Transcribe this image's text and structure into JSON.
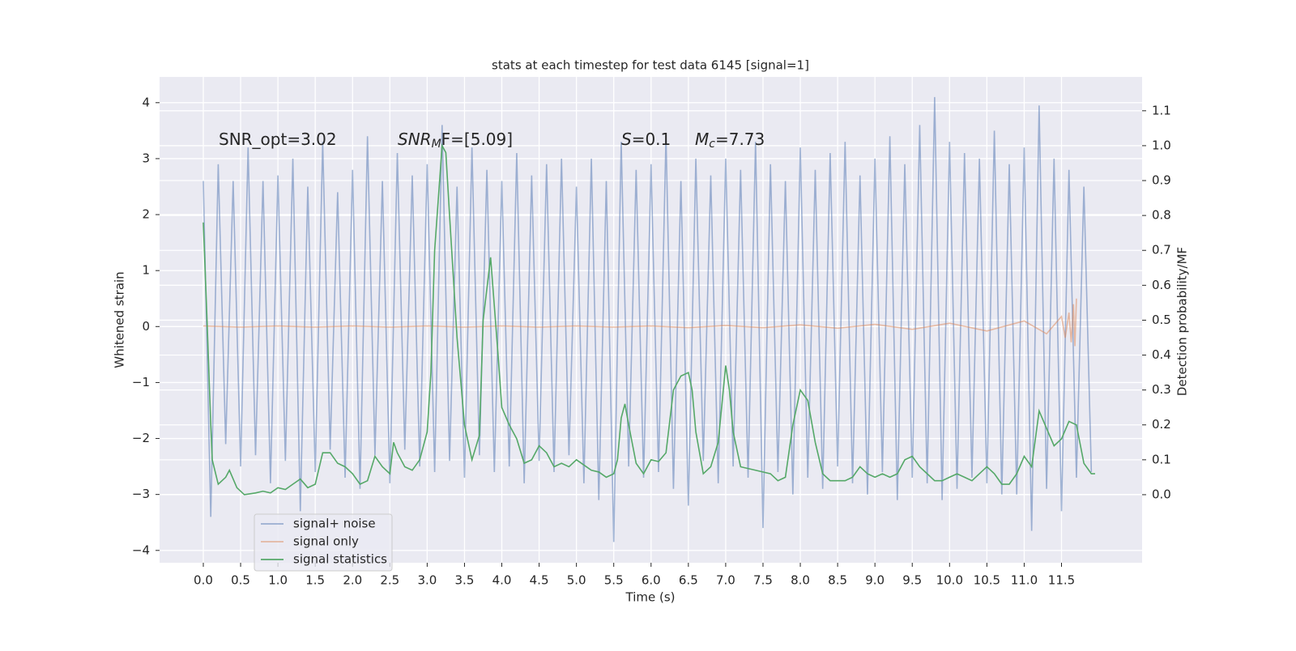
{
  "chart_data": {
    "type": "line",
    "title": "stats at each timestep for test data 6145 [signal=1]",
    "xlabel": "Time (s)",
    "ylabel": "Whitened strain",
    "y2label": "Detection probability/MF",
    "annotations": [
      [
        "SNR_opt=3.02"
      ],
      [
        "SNR",
        "M",
        "F=[5.09]"
      ],
      [
        "S",
        "=0.1"
      ],
      [
        "M",
        "c",
        "=7.73"
      ]
    ],
    "xlim": [
      -0.586,
      12.58
    ],
    "ylim": [
      -4.22,
      4.46
    ],
    "y2lim": [
      -0.195,
      1.197
    ],
    "xticks": [
      {
        "value": 0,
        "label": "0.0"
      },
      0.5,
      {
        "value": 1,
        "label": "1.0"
      },
      1.5,
      {
        "value": 2,
        "label": "2.0"
      },
      2.5,
      {
        "value": 3,
        "label": "3.0"
      },
      3.5,
      {
        "value": 4,
        "label": "4.0"
      },
      4.5,
      {
        "value": 5,
        "label": "5.0"
      },
      5.5,
      {
        "value": 6,
        "label": "6.0"
      },
      6.5,
      {
        "value": 7,
        "label": "7.0"
      },
      7.5,
      {
        "value": 8,
        "label": "8.0"
      },
      8.5,
      {
        "value": 9,
        "label": "9.0"
      },
      9.5,
      {
        "value": 10,
        "label": "10.0"
      },
      10.5,
      {
        "value": 11,
        "label": "11.0"
      },
      11.5
    ],
    "yticks": [
      {
        "value": -4,
        "label": "−4"
      },
      {
        "value": -3,
        "label": "−3"
      },
      {
        "value": -2,
        "label": "−2"
      },
      {
        "value": -1,
        "label": "−1"
      },
      0,
      1,
      2,
      3,
      4
    ],
    "y2ticks": [
      {
        "value": 0,
        "label": "0.0"
      },
      0.1,
      0.2,
      0.3,
      0.4,
      0.5,
      0.6,
      0.7,
      0.8,
      0.9,
      {
        "value": 1,
        "label": "1.0"
      },
      1.1
    ],
    "grid": true,
    "legend": "lower left",
    "series": [
      {
        "name": "signal+ noise",
        "color": "#4c72b0",
        "alpha": 0.5,
        "x": [
          0,
          0.1,
          0.2,
          0.3,
          0.4,
          0.5,
          0.6,
          0.7,
          0.8,
          0.9,
          1,
          1.1,
          1.2,
          1.3,
          1.4,
          1.5,
          1.6,
          1.7,
          1.8,
          1.9,
          2,
          2.1,
          2.2,
          2.3,
          2.4,
          2.5,
          2.6,
          2.7,
          2.8,
          2.9,
          3,
          3.1,
          3.2,
          3.3,
          3.4,
          3.5,
          3.6,
          3.7,
          3.8,
          3.9,
          4,
          4.1,
          4.2,
          4.3,
          4.4,
          4.5,
          4.6,
          4.7,
          4.8,
          4.9,
          5,
          5.1,
          5.2,
          5.3,
          5.4,
          5.5,
          5.6,
          5.7,
          5.8,
          5.9,
          6,
          6.1,
          6.2,
          6.3,
          6.4,
          6.5,
          6.6,
          6.7,
          6.8,
          6.9,
          7,
          7.1,
          7.2,
          7.3,
          7.4,
          7.5,
          7.6,
          7.7,
          7.8,
          7.9,
          8,
          8.1,
          8.2,
          8.3,
          8.4,
          8.5,
          8.6,
          8.7,
          8.8,
          8.9,
          9,
          9.1,
          9.2,
          9.3,
          9.4,
          9.5,
          9.6,
          9.7,
          9.8,
          9.9,
          10,
          10.1,
          10.2,
          10.3,
          10.4,
          10.5,
          10.6,
          10.7,
          10.8,
          10.9,
          11,
          11.1,
          11.2,
          11.3,
          11.4,
          11.5,
          11.6,
          11.7,
          11.8,
          11.9
        ],
        "values": [
          2.6,
          -3.4,
          2.9,
          -2.1,
          2.6,
          -2.5,
          3.2,
          -2.3,
          2.6,
          -2.8,
          2.7,
          -2.4,
          3.0,
          -3.3,
          2.5,
          -2.6,
          3.3,
          -2.2,
          2.4,
          -2.7,
          2.8,
          -2.9,
          3.4,
          -2.3,
          2.6,
          -2.8,
          3.1,
          -2.2,
          2.7,
          -2.5,
          2.9,
          -2.6,
          3.6,
          -2.4,
          2.5,
          -2.7,
          3.2,
          -2.3,
          2.8,
          -2.6,
          2.6,
          -2.5,
          3.1,
          -2.8,
          2.7,
          -2.4,
          2.9,
          -2.6,
          3.0,
          -2.3,
          2.5,
          -2.8,
          3.0,
          -3.1,
          2.6,
          -3.85,
          3.3,
          -2.5,
          2.8,
          -2.7,
          2.9,
          -2.6,
          3.4,
          -2.9,
          2.6,
          -3.2,
          3.0,
          -2.4,
          2.7,
          -2.8,
          3.0,
          -2.5,
          2.8,
          -2.7,
          3.3,
          -3.6,
          2.9,
          -2.6,
          2.6,
          -3.0,
          3.2,
          -2.7,
          2.8,
          -2.9,
          3.1,
          -2.5,
          3.3,
          -2.8,
          2.7,
          -3.0,
          3.0,
          -2.6,
          3.4,
          -3.1,
          2.9,
          -2.7,
          3.6,
          -2.8,
          4.1,
          -3.1,
          3.3,
          -2.9,
          3.1,
          -2.7,
          3.0,
          -2.8,
          3.5,
          -3.0,
          2.9,
          -3.0,
          3.2,
          -3.65,
          3.95,
          -2.9,
          3.0,
          -3.3,
          2.8,
          -2.7,
          2.5,
          -2.6
        ]
      },
      {
        "name": "signal only",
        "color": "#dd8452",
        "alpha": 0.5,
        "x": [
          0,
          0.5,
          1,
          1.5,
          2,
          2.5,
          3,
          3.5,
          4,
          4.5,
          5,
          5.5,
          6,
          6.5,
          7,
          7.5,
          8,
          8.5,
          9,
          9.5,
          10,
          10.5,
          11,
          11.3,
          11.5,
          11.55,
          11.6,
          11.63,
          11.66,
          11.68,
          11.7
        ],
        "values": [
          0.01,
          -0.01,
          0.01,
          -0.01,
          0.01,
          -0.01,
          0.01,
          -0.01,
          0.01,
          -0.01,
          0.01,
          -0.01,
          0.01,
          -0.02,
          0.02,
          -0.02,
          0.03,
          -0.03,
          0.04,
          -0.05,
          0.06,
          -0.08,
          0.1,
          -0.13,
          0.18,
          -0.2,
          0.25,
          -0.28,
          0.4,
          -0.35,
          0.5
        ]
      },
      {
        "name": "signal statistics",
        "color": "#55a868",
        "axis": "y2",
        "x": [
          0,
          0.05,
          0.1,
          0.12,
          0.2,
          0.3,
          0.35,
          0.45,
          0.55,
          0.7,
          0.8,
          0.9,
          1,
          1.1,
          1.2,
          1.3,
          1.4,
          1.5,
          1.6,
          1.7,
          1.8,
          1.9,
          2,
          2.1,
          2.2,
          2.3,
          2.4,
          2.5,
          2.55,
          2.6,
          2.7,
          2.8,
          2.9,
          3,
          3.05,
          3.1,
          3.2,
          3.25,
          3.3,
          3.4,
          3.5,
          3.6,
          3.7,
          3.75,
          3.85,
          3.95,
          4,
          4.1,
          4.2,
          4.3,
          4.4,
          4.5,
          4.6,
          4.7,
          4.8,
          4.9,
          5,
          5.1,
          5.2,
          5.3,
          5.4,
          5.5,
          5.55,
          5.6,
          5.65,
          5.7,
          5.8,
          5.9,
          6,
          6.1,
          6.2,
          6.3,
          6.4,
          6.5,
          6.55,
          6.6,
          6.7,
          6.8,
          6.9,
          7,
          7.05,
          7.1,
          7.2,
          7.4,
          7.6,
          7.7,
          7.8,
          7.9,
          8,
          8.1,
          8.2,
          8.3,
          8.4,
          8.6,
          8.7,
          8.8,
          8.9,
          9,
          9.1,
          9.2,
          9.3,
          9.4,
          9.5,
          9.6,
          9.8,
          9.9,
          10,
          10.1,
          10.2,
          10.3,
          10.4,
          10.5,
          10.6,
          10.7,
          10.8,
          10.9,
          11,
          11.1,
          11.2,
          11.3,
          11.4,
          11.5,
          11.6,
          11.7,
          11.8,
          11.9,
          11.95
        ],
        "values": [
          0.78,
          0.5,
          0.2,
          0.1,
          0.03,
          0.05,
          0.07,
          0.02,
          0.0,
          0.005,
          0.01,
          0.005,
          0.02,
          0.015,
          0.03,
          0.045,
          0.02,
          0.03,
          0.12,
          0.12,
          0.09,
          0.08,
          0.06,
          0.03,
          0.04,
          0.11,
          0.08,
          0.06,
          0.15,
          0.12,
          0.08,
          0.07,
          0.1,
          0.18,
          0.35,
          0.7,
          1.0,
          0.98,
          0.8,
          0.45,
          0.2,
          0.1,
          0.17,
          0.5,
          0.68,
          0.4,
          0.25,
          0.2,
          0.16,
          0.09,
          0.1,
          0.14,
          0.12,
          0.08,
          0.09,
          0.08,
          0.1,
          0.085,
          0.07,
          0.065,
          0.05,
          0.06,
          0.1,
          0.22,
          0.26,
          0.2,
          0.09,
          0.06,
          0.1,
          0.095,
          0.12,
          0.3,
          0.34,
          0.35,
          0.3,
          0.18,
          0.06,
          0.08,
          0.15,
          0.37,
          0.3,
          0.18,
          0.08,
          0.07,
          0.06,
          0.04,
          0.05,
          0.2,
          0.3,
          0.27,
          0.15,
          0.06,
          0.04,
          0.04,
          0.05,
          0.08,
          0.06,
          0.05,
          0.06,
          0.05,
          0.06,
          0.1,
          0.11,
          0.08,
          0.04,
          0.04,
          0.05,
          0.06,
          0.05,
          0.04,
          0.06,
          0.08,
          0.06,
          0.03,
          0.03,
          0.06,
          0.11,
          0.08,
          0.24,
          0.19,
          0.14,
          0.16,
          0.21,
          0.2,
          0.09,
          0.06,
          0.06
        ]
      }
    ]
  }
}
